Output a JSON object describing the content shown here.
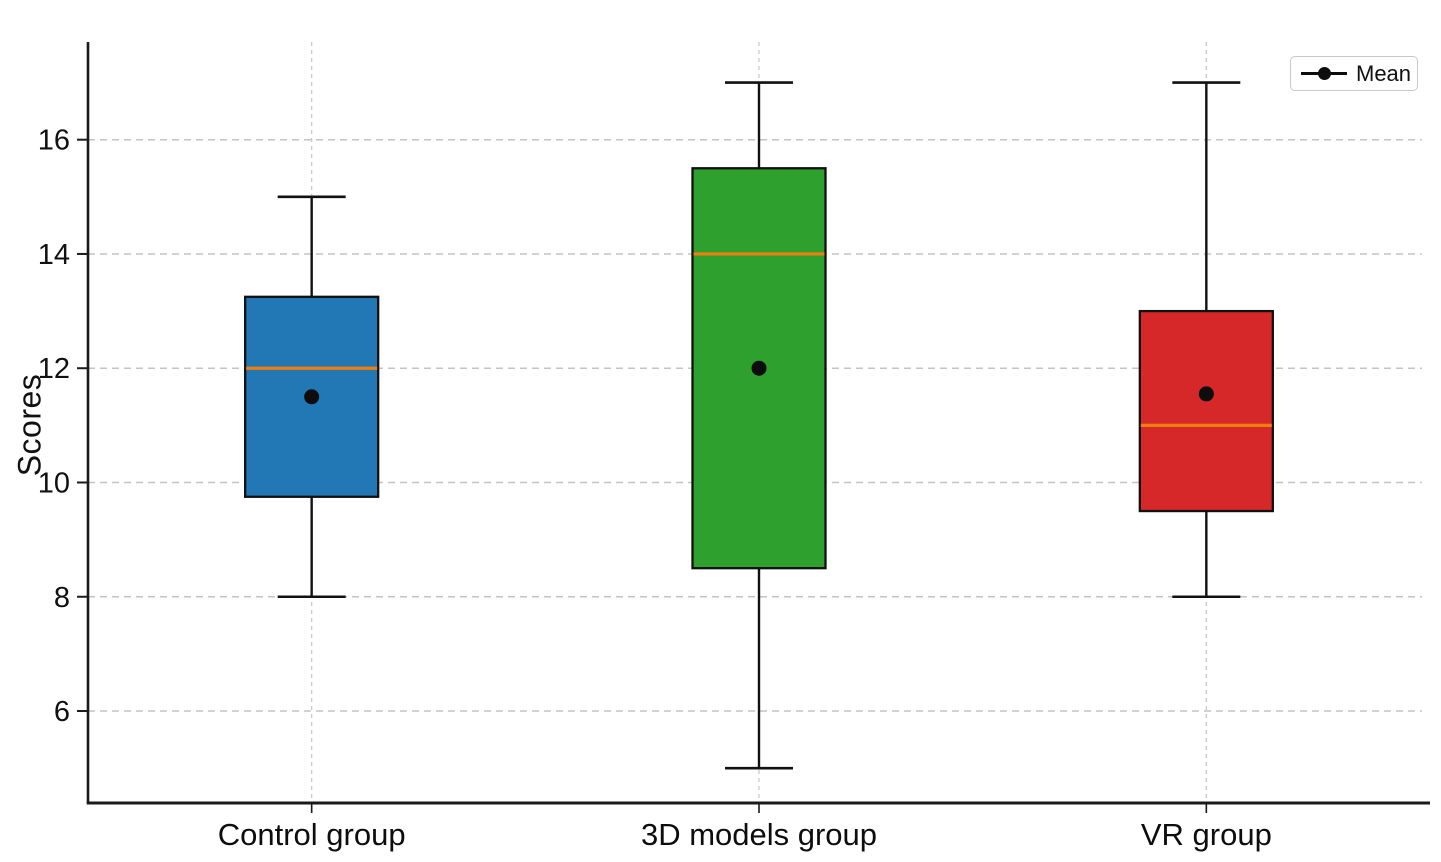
{
  "figure": {
    "title": "",
    "background_color": "#ffffff",
    "text_color": "#111111",
    "axis_color": "#1a1a1a",
    "gridline_color": "#c3c3c3"
  },
  "icons": {
    "mean_marker": "black-line-with-filled-dot"
  },
  "chart_data": {
    "type": "boxplot",
    "title": "",
    "xlabel": "",
    "ylabel": "Scores",
    "categories": [
      "Control group",
      "3D models group",
      "VR group"
    ],
    "yticks": [
      6,
      8,
      10,
      12,
      14,
      16
    ],
    "ylim": [
      4.39,
      17.71
    ],
    "grid": "dashed horizontal at yticks and dashed vertical at category centers",
    "legend": [
      "Mean"
    ],
    "legend_position": "upper right",
    "median_color": "#F07E0E",
    "mean_marker_color": "#0d0d0d",
    "series": [
      {
        "name": "Control group",
        "box_color": "#2278B4",
        "whisker_low": 8,
        "q1": 9.75,
        "median": 12,
        "q3": 13.25,
        "whisker_high": 15,
        "mean": 11.5
      },
      {
        "name": "3D models group",
        "box_color": "#2DA02D",
        "whisker_low": 5,
        "q1": 8.5,
        "median": 14,
        "q3": 15.5,
        "whisker_high": 17,
        "mean": 12.0
      },
      {
        "name": "VR group",
        "box_color": "#D62829",
        "whisker_low": 8,
        "q1": 9.5,
        "median": 11,
        "q3": 13.0,
        "whisker_high": 17,
        "mean": 11.55
      }
    ]
  }
}
